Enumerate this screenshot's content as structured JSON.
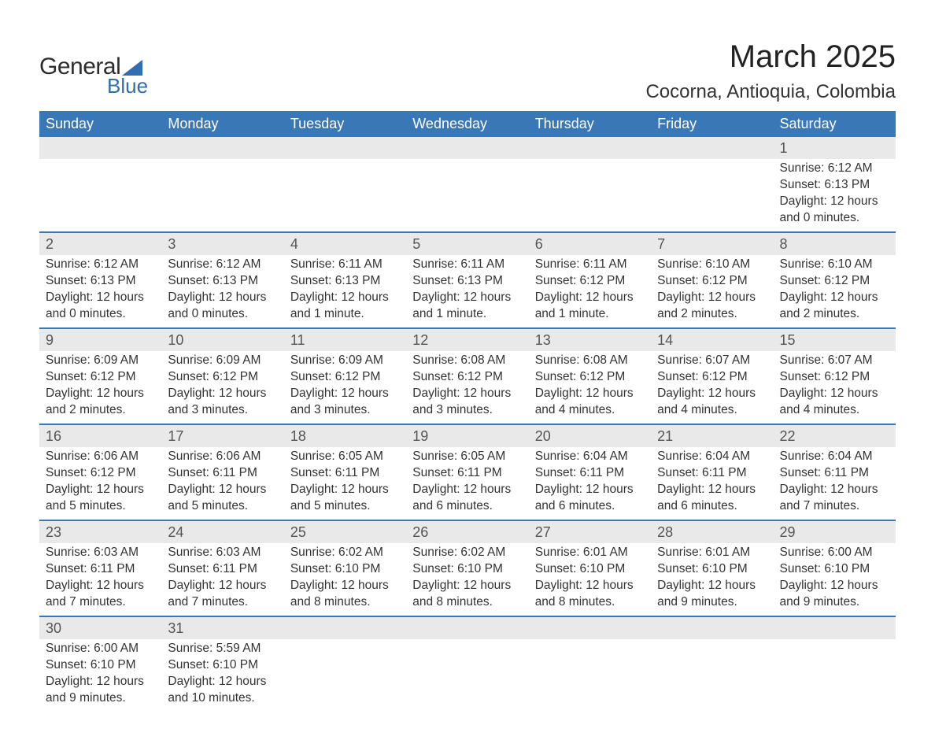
{
  "brand": {
    "word1": "General",
    "word2": "Blue",
    "accent_color": "#2f6eaf"
  },
  "title": "March 2025",
  "location": "Cocorna, Antioquia, Colombia",
  "colors": {
    "header_bg": "#3a77b6",
    "header_text": "#ffffff",
    "daynum_bg": "#e9e9e9",
    "row_divider": "#3a77b6",
    "body_text": "#333333"
  },
  "weekdays": [
    "Sunday",
    "Monday",
    "Tuesday",
    "Wednesday",
    "Thursday",
    "Friday",
    "Saturday"
  ],
  "weeks": [
    [
      {
        "blank": true
      },
      {
        "blank": true
      },
      {
        "blank": true
      },
      {
        "blank": true
      },
      {
        "blank": true
      },
      {
        "blank": true
      },
      {
        "day": "1",
        "sunrise": "Sunrise: 6:12 AM",
        "sunset": "Sunset: 6:13 PM",
        "daylight": "Daylight: 12 hours and 0 minutes."
      }
    ],
    [
      {
        "day": "2",
        "sunrise": "Sunrise: 6:12 AM",
        "sunset": "Sunset: 6:13 PM",
        "daylight": "Daylight: 12 hours and 0 minutes."
      },
      {
        "day": "3",
        "sunrise": "Sunrise: 6:12 AM",
        "sunset": "Sunset: 6:13 PM",
        "daylight": "Daylight: 12 hours and 0 minutes."
      },
      {
        "day": "4",
        "sunrise": "Sunrise: 6:11 AM",
        "sunset": "Sunset: 6:13 PM",
        "daylight": "Daylight: 12 hours and 1 minute."
      },
      {
        "day": "5",
        "sunrise": "Sunrise: 6:11 AM",
        "sunset": "Sunset: 6:13 PM",
        "daylight": "Daylight: 12 hours and 1 minute."
      },
      {
        "day": "6",
        "sunrise": "Sunrise: 6:11 AM",
        "sunset": "Sunset: 6:12 PM",
        "daylight": "Daylight: 12 hours and 1 minute."
      },
      {
        "day": "7",
        "sunrise": "Sunrise: 6:10 AM",
        "sunset": "Sunset: 6:12 PM",
        "daylight": "Daylight: 12 hours and 2 minutes."
      },
      {
        "day": "8",
        "sunrise": "Sunrise: 6:10 AM",
        "sunset": "Sunset: 6:12 PM",
        "daylight": "Daylight: 12 hours and 2 minutes."
      }
    ],
    [
      {
        "day": "9",
        "sunrise": "Sunrise: 6:09 AM",
        "sunset": "Sunset: 6:12 PM",
        "daylight": "Daylight: 12 hours and 2 minutes."
      },
      {
        "day": "10",
        "sunrise": "Sunrise: 6:09 AM",
        "sunset": "Sunset: 6:12 PM",
        "daylight": "Daylight: 12 hours and 3 minutes."
      },
      {
        "day": "11",
        "sunrise": "Sunrise: 6:09 AM",
        "sunset": "Sunset: 6:12 PM",
        "daylight": "Daylight: 12 hours and 3 minutes."
      },
      {
        "day": "12",
        "sunrise": "Sunrise: 6:08 AM",
        "sunset": "Sunset: 6:12 PM",
        "daylight": "Daylight: 12 hours and 3 minutes."
      },
      {
        "day": "13",
        "sunrise": "Sunrise: 6:08 AM",
        "sunset": "Sunset: 6:12 PM",
        "daylight": "Daylight: 12 hours and 4 minutes."
      },
      {
        "day": "14",
        "sunrise": "Sunrise: 6:07 AM",
        "sunset": "Sunset: 6:12 PM",
        "daylight": "Daylight: 12 hours and 4 minutes."
      },
      {
        "day": "15",
        "sunrise": "Sunrise: 6:07 AM",
        "sunset": "Sunset: 6:12 PM",
        "daylight": "Daylight: 12 hours and 4 minutes."
      }
    ],
    [
      {
        "day": "16",
        "sunrise": "Sunrise: 6:06 AM",
        "sunset": "Sunset: 6:12 PM",
        "daylight": "Daylight: 12 hours and 5 minutes."
      },
      {
        "day": "17",
        "sunrise": "Sunrise: 6:06 AM",
        "sunset": "Sunset: 6:11 PM",
        "daylight": "Daylight: 12 hours and 5 minutes."
      },
      {
        "day": "18",
        "sunrise": "Sunrise: 6:05 AM",
        "sunset": "Sunset: 6:11 PM",
        "daylight": "Daylight: 12 hours and 5 minutes."
      },
      {
        "day": "19",
        "sunrise": "Sunrise: 6:05 AM",
        "sunset": "Sunset: 6:11 PM",
        "daylight": "Daylight: 12 hours and 6 minutes."
      },
      {
        "day": "20",
        "sunrise": "Sunrise: 6:04 AM",
        "sunset": "Sunset: 6:11 PM",
        "daylight": "Daylight: 12 hours and 6 minutes."
      },
      {
        "day": "21",
        "sunrise": "Sunrise: 6:04 AM",
        "sunset": "Sunset: 6:11 PM",
        "daylight": "Daylight: 12 hours and 6 minutes."
      },
      {
        "day": "22",
        "sunrise": "Sunrise: 6:04 AM",
        "sunset": "Sunset: 6:11 PM",
        "daylight": "Daylight: 12 hours and 7 minutes."
      }
    ],
    [
      {
        "day": "23",
        "sunrise": "Sunrise: 6:03 AM",
        "sunset": "Sunset: 6:11 PM",
        "daylight": "Daylight: 12 hours and 7 minutes."
      },
      {
        "day": "24",
        "sunrise": "Sunrise: 6:03 AM",
        "sunset": "Sunset: 6:11 PM",
        "daylight": "Daylight: 12 hours and 7 minutes."
      },
      {
        "day": "25",
        "sunrise": "Sunrise: 6:02 AM",
        "sunset": "Sunset: 6:10 PM",
        "daylight": "Daylight: 12 hours and 8 minutes."
      },
      {
        "day": "26",
        "sunrise": "Sunrise: 6:02 AM",
        "sunset": "Sunset: 6:10 PM",
        "daylight": "Daylight: 12 hours and 8 minutes."
      },
      {
        "day": "27",
        "sunrise": "Sunrise: 6:01 AM",
        "sunset": "Sunset: 6:10 PM",
        "daylight": "Daylight: 12 hours and 8 minutes."
      },
      {
        "day": "28",
        "sunrise": "Sunrise: 6:01 AM",
        "sunset": "Sunset: 6:10 PM",
        "daylight": "Daylight: 12 hours and 9 minutes."
      },
      {
        "day": "29",
        "sunrise": "Sunrise: 6:00 AM",
        "sunset": "Sunset: 6:10 PM",
        "daylight": "Daylight: 12 hours and 9 minutes."
      }
    ],
    [
      {
        "day": "30",
        "sunrise": "Sunrise: 6:00 AM",
        "sunset": "Sunset: 6:10 PM",
        "daylight": "Daylight: 12 hours and 9 minutes."
      },
      {
        "day": "31",
        "sunrise": "Sunrise: 5:59 AM",
        "sunset": "Sunset: 6:10 PM",
        "daylight": "Daylight: 12 hours and 10 minutes."
      },
      {
        "blank": true
      },
      {
        "blank": true
      },
      {
        "blank": true
      },
      {
        "blank": true
      },
      {
        "blank": true
      }
    ]
  ]
}
